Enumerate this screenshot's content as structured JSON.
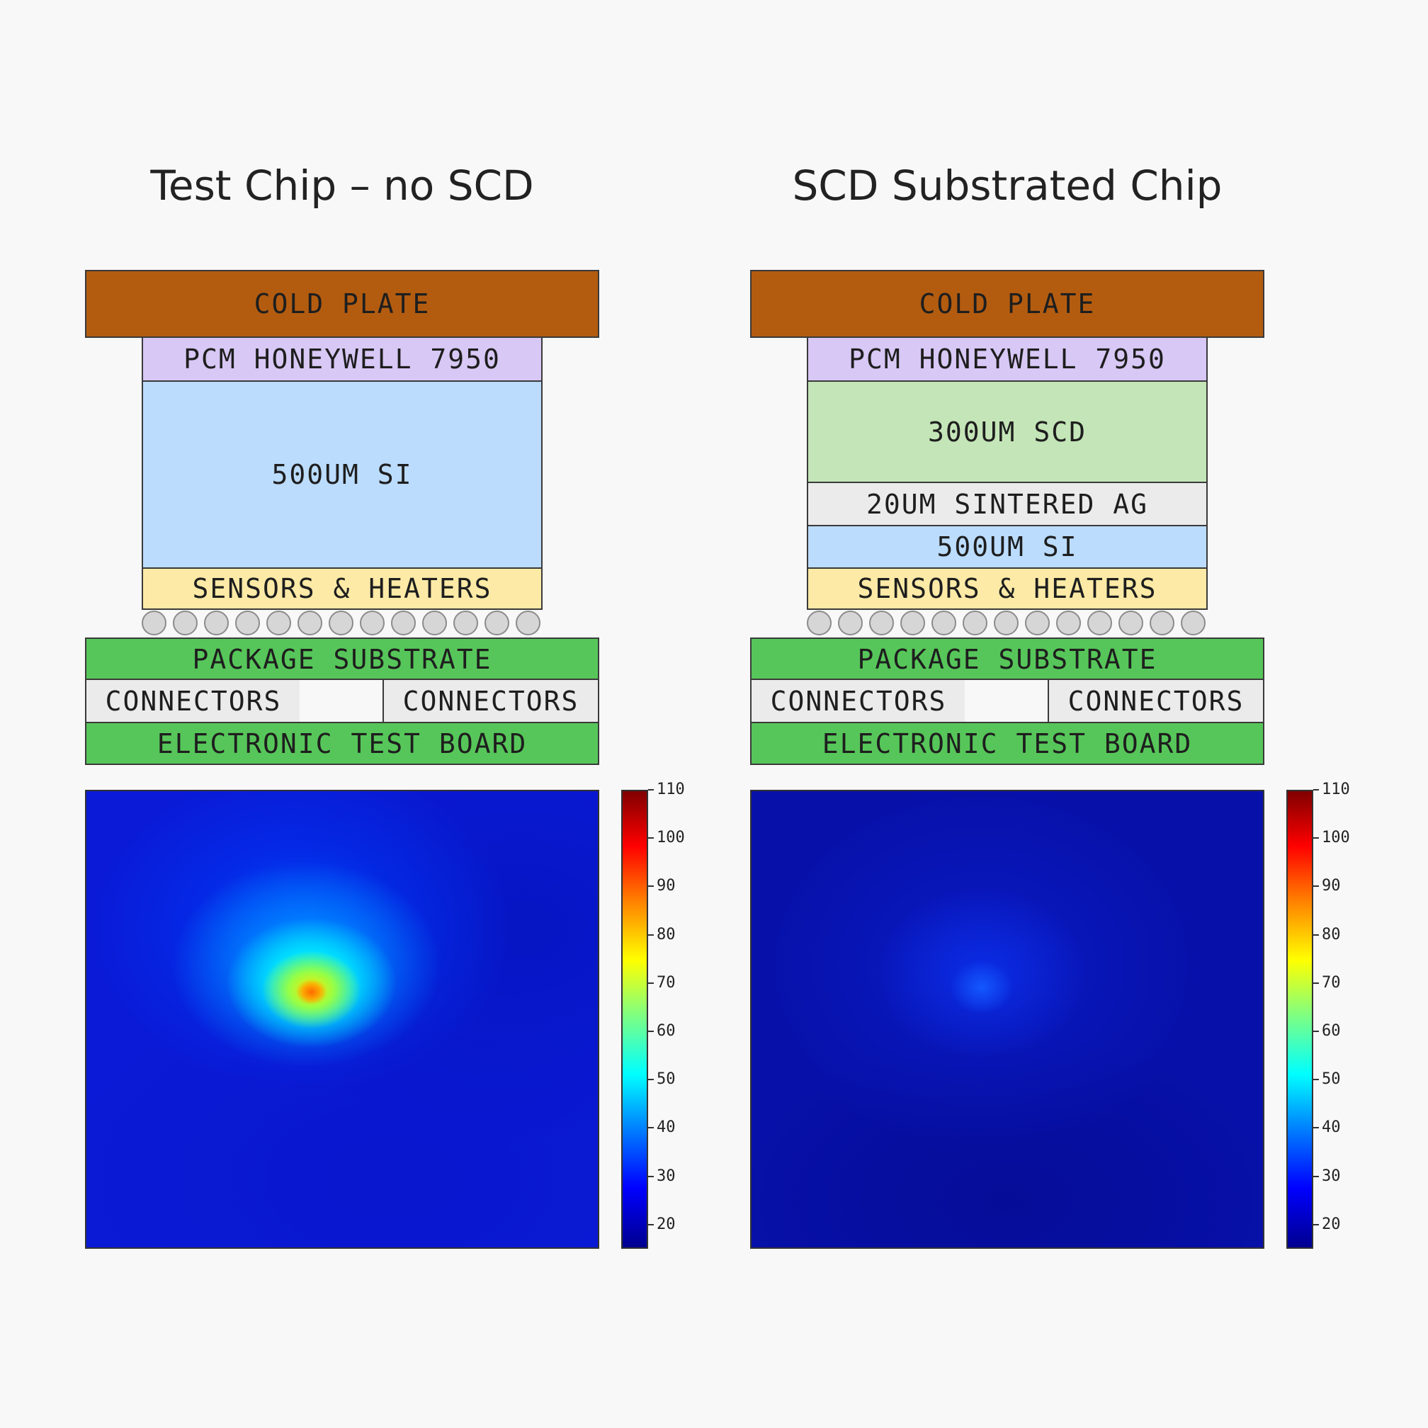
{
  "panels": {
    "left": {
      "title": "Test Chip – no SCD",
      "layers": {
        "cold_plate": "COLD PLATE",
        "pcm": "PCM HONEYWELL 7950",
        "si": "500UM SI",
        "sensors": "SENSORS & HEATERS",
        "package": "PACKAGE SUBSTRATE",
        "connector_left": "CONNECTORS",
        "connector_right": "CONNECTORS",
        "board": "ELECTRONIC TEST BOARD"
      },
      "heatmap": {
        "peak_value": 82,
        "background_value": 22,
        "hotspot": "upper-left-center"
      }
    },
    "right": {
      "title": "SCD Substrated Chip",
      "layers": {
        "cold_plate": "COLD PLATE",
        "pcm": "PCM HONEYWELL 7950",
        "scd": "300UM SCD",
        "ag": "20UM SINTERED AG",
        "si": "500UM SI",
        "sensors": "SENSORS & HEATERS",
        "package": "PACKAGE SUBSTRATE",
        "connector_left": "CONNECTORS",
        "connector_right": "CONNECTORS",
        "board": "ELECTRONIC TEST BOARD"
      },
      "heatmap": {
        "peak_value": 30,
        "background_value": 17,
        "hotspot": "center"
      }
    }
  },
  "colorbar": {
    "min": 15,
    "max": 110,
    "ticks": [
      "110",
      "100",
      "90",
      "80",
      "70",
      "60",
      "50",
      "40",
      "30",
      "20"
    ]
  },
  "solder_bump_count": 13,
  "colors": {
    "cold_plate": "#b35c10",
    "pcm": "#d8c8f5",
    "si": "#bbdcfd",
    "scd": "#c4e5b7",
    "ag": "#ebebeb",
    "sensors": "#fdeaa6",
    "package": "#57c65a",
    "board": "#57c65a"
  }
}
